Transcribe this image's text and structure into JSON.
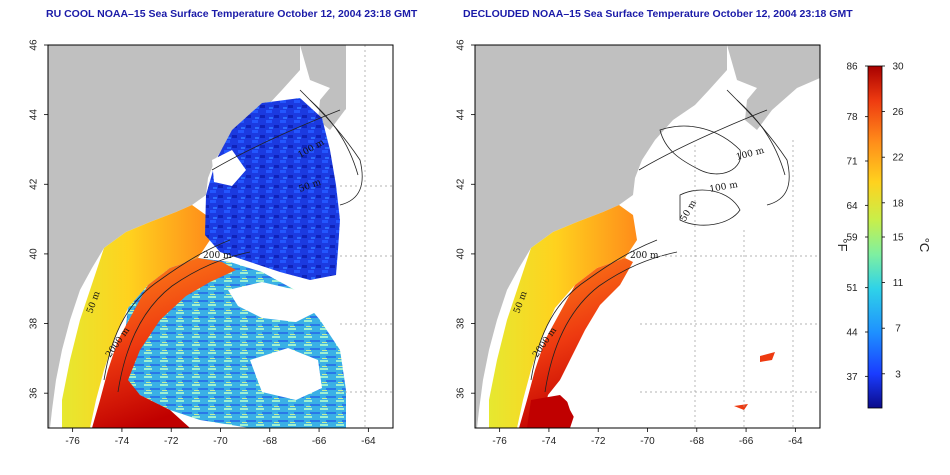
{
  "titles": {
    "left": "RU COOL NOAA–15 Sea Surface Temperature October 12, 2004 23:18 GMT",
    "right": "DECLOUDED NOAA–15 Sea Surface Temperature October 12, 2004 23:18 GMT"
  },
  "axes": {
    "x_ticks": [
      "-76",
      "-74",
      "-72",
      "-70",
      "-68",
      "-66",
      "-64"
    ],
    "y_ticks": [
      "36",
      "38",
      "40",
      "42",
      "44",
      "46"
    ],
    "xlim": [
      -77,
      -63
    ],
    "ylim": [
      35,
      46
    ]
  },
  "contour_labels": {
    "left": [
      "50 m",
      "2000 m",
      "200 m",
      "100 m",
      "50 m"
    ],
    "right": [
      "50 m",
      "2000 m",
      "200 m",
      "100 m",
      "100 m",
      "50 m"
    ]
  },
  "colorbar": {
    "fahrenheit_ticks": [
      "86",
      "78",
      "71",
      "64",
      "59",
      "51",
      "44",
      "37"
    ],
    "celsius_ticks": [
      "30",
      "26",
      "22",
      "18",
      "15",
      "11",
      "7",
      "3"
    ],
    "fahrenheit_unit": "°F",
    "celsius_unit": "°C",
    "range_c": [
      0,
      30
    ],
    "colors": [
      "#0b0b8a",
      "#1a3cff",
      "#1e90ff",
      "#2fd3e8",
      "#7ff0a0",
      "#c8ef4a",
      "#ffd21e",
      "#ff8c1a",
      "#ee3a10",
      "#a80000"
    ]
  },
  "map_colors": {
    "land": "#c0c0c0",
    "cloud": "#ffffff"
  }
}
